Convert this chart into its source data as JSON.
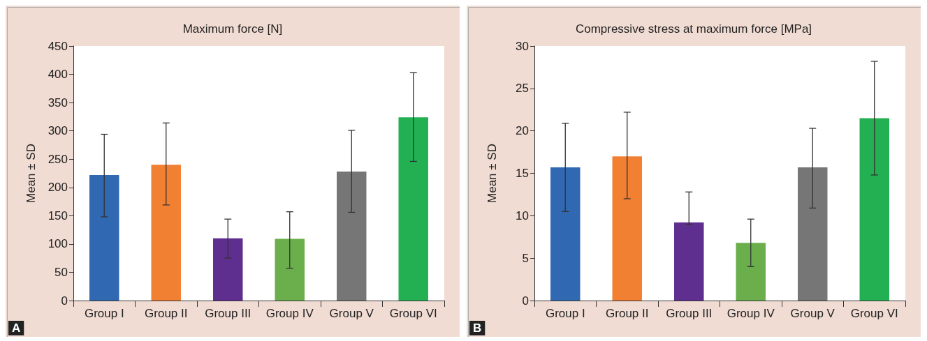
{
  "chart_data": [
    {
      "type": "bar",
      "title": "Maximum force [N]",
      "ylabel": "Mean ± SD",
      "categories": [
        "Group I",
        "Group II",
        "Group III",
        "Group IV",
        "Group V",
        "Group VI"
      ],
      "values": [
        222,
        240,
        110,
        109,
        228,
        324
      ],
      "errors": [
        [
          148,
          294
        ],
        [
          169,
          314
        ],
        [
          75,
          144
        ],
        [
          57,
          157
        ],
        [
          156,
          301
        ],
        [
          246,
          403
        ]
      ],
      "colors": [
        "#3068b2",
        "#f28033",
        "#5f2f8f",
        "#6aaf4c",
        "#767676",
        "#22b053"
      ],
      "ylim": [
        0,
        450
      ],
      "yticks": [
        0,
        50,
        100,
        150,
        200,
        250,
        300,
        350,
        400,
        450
      ],
      "grid": false,
      "annotations": [
        "A"
      ]
    },
    {
      "type": "bar",
      "title": "Compressive stress at maximum force [MPa]",
      "ylabel": "Mean ± SD",
      "categories": [
        "Group I",
        "Group II",
        "Group III",
        "Group IV",
        "Group V",
        "Group VI"
      ],
      "values": [
        15.7,
        17.0,
        9.2,
        6.8,
        15.7,
        21.5
      ],
      "errors": [
        [
          10.5,
          20.9
        ],
        [
          12.0,
          22.2
        ],
        [
          9.0,
          12.8
        ],
        [
          4.0,
          9.6
        ],
        [
          10.9,
          20.3
        ],
        [
          14.8,
          28.2
        ]
      ],
      "colors": [
        "#3068b2",
        "#f28033",
        "#5f2f8f",
        "#6aaf4c",
        "#767676",
        "#22b053"
      ],
      "ylim": [
        0,
        30
      ],
      "yticks": [
        0,
        5,
        10,
        15,
        20,
        25,
        30
      ],
      "grid": false,
      "annotations": [
        "B"
      ]
    }
  ]
}
